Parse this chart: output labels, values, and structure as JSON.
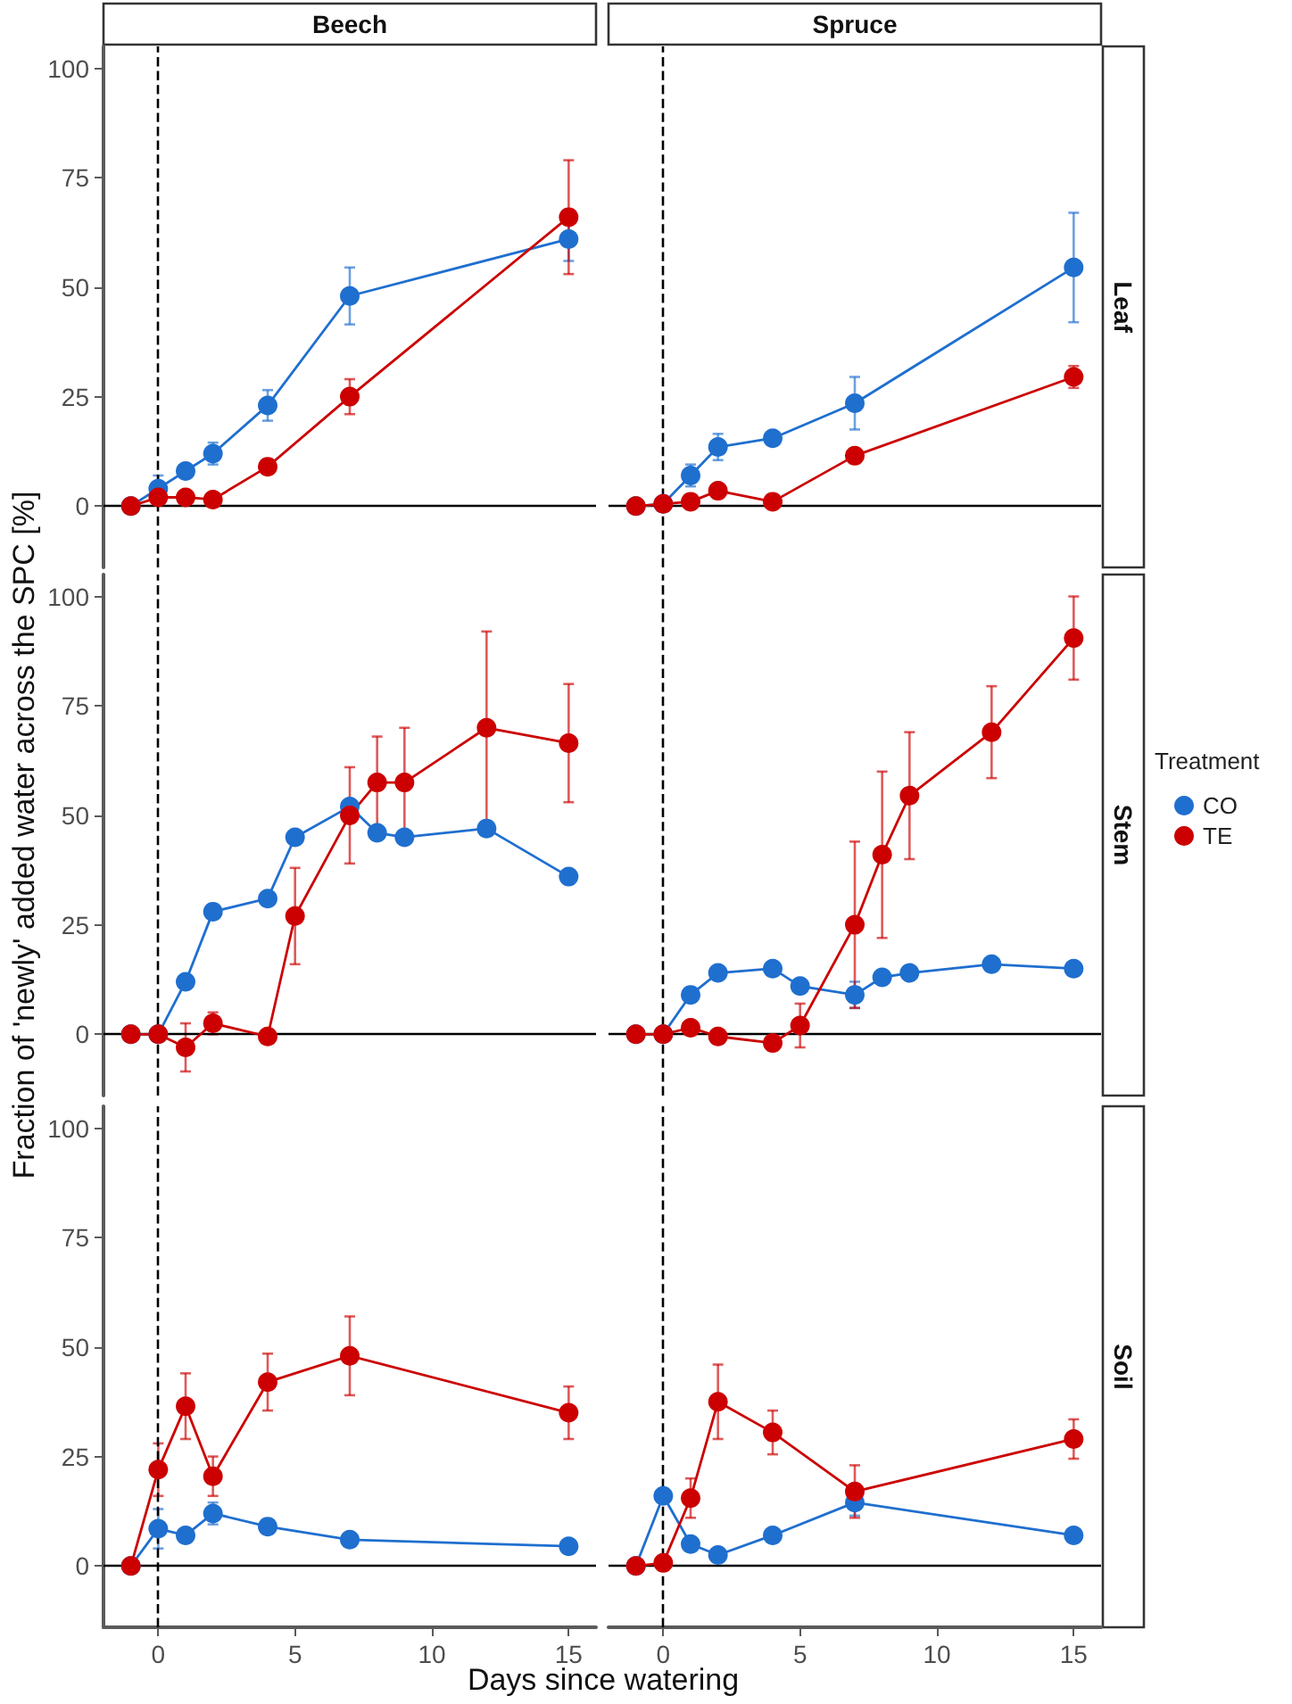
{
  "chart_data": [
    {
      "type": "line",
      "title": "Beech",
      "xlim": [
        -2,
        16
      ],
      "ylim": [
        -14,
        105
      ],
      "xticks": [
        0,
        5,
        10,
        15
      ],
      "yticks": [
        0,
        25,
        50,
        75,
        100
      ],
      "grid": false,
      "legend": false,
      "marker": "circle",
      "tick_labels": "y",
      "ref_lines": [
        {
          "axis": "x",
          "value": 0,
          "line_style": "dashed",
          "color": "#000000"
        },
        {
          "axis": "y",
          "value": 0,
          "color": "#000000"
        }
      ],
      "series": [
        {
          "color": "#1f6fcf",
          "x": [
            -1,
            0,
            1,
            2,
            4,
            7,
            15
          ],
          "values": [
            0,
            4,
            8,
            12,
            23,
            48,
            61
          ],
          "errors": [
            null,
            3,
            null,
            2.5,
            3.5,
            6.5,
            5
          ]
        },
        {
          "color": "#cc0000",
          "x": [
            -1,
            0,
            1,
            2,
            4,
            7,
            15
          ],
          "values": [
            0,
            2,
            2,
            1.5,
            9,
            25,
            66
          ],
          "errors": [
            null,
            null,
            null,
            null,
            null,
            4,
            13
          ]
        }
      ]
    },
    {
      "type": "line",
      "title": "Spruce",
      "annotations": [
        "Leaf"
      ],
      "xlim": [
        -2,
        16
      ],
      "ylim": [
        -14,
        105
      ],
      "xticks": [
        0,
        5,
        10,
        15
      ],
      "yticks": [
        0,
        25,
        50,
        75,
        100
      ],
      "grid": false,
      "legend": false,
      "marker": "circle",
      "tick_labels": false,
      "ref_lines": [
        {
          "axis": "x",
          "value": 0,
          "line_style": "dashed",
          "color": "#000000"
        },
        {
          "axis": "y",
          "value": 0,
          "color": "#000000"
        }
      ],
      "series": [
        {
          "color": "#1f6fcf",
          "x": [
            -1,
            0,
            1,
            2,
            4,
            7,
            15
          ],
          "values": [
            0,
            0.5,
            7,
            13.5,
            15.5,
            23.5,
            54.5
          ],
          "errors": [
            null,
            null,
            2.5,
            3,
            null,
            6,
            12.5
          ]
        },
        {
          "color": "#cc0000",
          "x": [
            -1,
            0,
            1,
            2,
            4,
            7,
            15
          ],
          "values": [
            0,
            0.5,
            1,
            3.5,
            1,
            11.5,
            29.5
          ],
          "errors": [
            null,
            null,
            null,
            null,
            null,
            1.5,
            2.5
          ]
        }
      ]
    },
    {
      "type": "line",
      "ylabel": "Fraction of 'newly' added water across the SPC [%]",
      "xlim": [
        -2,
        16
      ],
      "ylim": [
        -14,
        105
      ],
      "xticks": [
        0,
        5,
        10,
        15
      ],
      "yticks": [
        0,
        25,
        50,
        75,
        100
      ],
      "grid": false,
      "legend": false,
      "marker": "circle",
      "tick_labels": "y",
      "ref_lines": [
        {
          "axis": "x",
          "value": 0,
          "line_style": "dashed",
          "color": "#000000"
        },
        {
          "axis": "y",
          "value": 0,
          "color": "#000000"
        }
      ],
      "series": [
        {
          "color": "#1f6fcf",
          "x": [
            -1,
            0,
            1,
            2,
            4,
            5,
            7,
            8,
            9,
            12,
            15
          ],
          "values": [
            0,
            0,
            12,
            28,
            31,
            45,
            52,
            46,
            45,
            47,
            36
          ],
          "errors": [
            null,
            null,
            null,
            null,
            null,
            null,
            null,
            null,
            null,
            null,
            null
          ]
        },
        {
          "color": "#cc0000",
          "x": [
            -1,
            0,
            1,
            2,
            4,
            5,
            7,
            8,
            9,
            12,
            15
          ],
          "values": [
            0,
            0,
            -3,
            2.5,
            -0.5,
            27,
            50,
            57.5,
            57.5,
            70,
            66.5
          ],
          "errors": [
            null,
            null,
            5.5,
            2.5,
            null,
            11,
            11,
            10.5,
            12.5,
            22,
            13.5
          ]
        }
      ]
    },
    {
      "type": "line",
      "annotations": [
        "Stem"
      ],
      "legend_title": "Treatment",
      "xlim": [
        -2,
        16
      ],
      "ylim": [
        -14,
        105
      ],
      "xticks": [
        0,
        5,
        10,
        15
      ],
      "yticks": [
        0,
        25,
        50,
        75,
        100
      ],
      "grid": false,
      "legend": "right",
      "marker": "circle",
      "tick_labels": false,
      "ref_lines": [
        {
          "axis": "x",
          "value": 0,
          "line_style": "dashed",
          "color": "#000000"
        },
        {
          "axis": "y",
          "value": 0,
          "color": "#000000"
        }
      ],
      "series": [
        {
          "name": "CO",
          "color": "#1f6fcf",
          "x": [
            -1,
            0,
            1,
            2,
            4,
            5,
            7,
            8,
            9,
            12,
            15
          ],
          "values": [
            0,
            0,
            9,
            14,
            15,
            11,
            9,
            13,
            14,
            16,
            15
          ],
          "errors": [
            null,
            null,
            null,
            null,
            null,
            null,
            3,
            null,
            null,
            null,
            null
          ]
        },
        {
          "name": "TE",
          "color": "#cc0000",
          "x": [
            -1,
            0,
            1,
            2,
            4,
            5,
            7,
            8,
            9,
            12,
            15
          ],
          "values": [
            0,
            0,
            1.5,
            -0.5,
            -2,
            2,
            25,
            41,
            54.5,
            69,
            90.5
          ],
          "errors": [
            null,
            null,
            null,
            null,
            null,
            5,
            19,
            19,
            14.5,
            10.5,
            9.5
          ]
        }
      ]
    },
    {
      "type": "line",
      "xlabel": "Days since watering",
      "xlim": [
        -2,
        16
      ],
      "ylim": [
        -14,
        105
      ],
      "xticks": [
        0,
        5,
        10,
        15
      ],
      "yticks": [
        0,
        25,
        50,
        75,
        100
      ],
      "grid": false,
      "legend": false,
      "marker": "circle",
      "ref_lines": [
        {
          "axis": "x",
          "value": 0,
          "line_style": "dashed",
          "color": "#000000"
        },
        {
          "axis": "y",
          "value": 0,
          "color": "#000000"
        }
      ],
      "series": [
        {
          "color": "#1f6fcf",
          "x": [
            -1,
            0,
            1,
            2,
            4,
            7,
            15
          ],
          "values": [
            0,
            8.5,
            7,
            12,
            9,
            6,
            4.5
          ],
          "errors": [
            null,
            4.5,
            null,
            2.5,
            1.5,
            null,
            null
          ]
        },
        {
          "color": "#cc0000",
          "x": [
            -1,
            0,
            1,
            2,
            4,
            7,
            15
          ],
          "values": [
            0,
            22,
            36.5,
            20.5,
            42,
            48,
            35
          ],
          "errors": [
            null,
            6,
            7.5,
            4.5,
            6.5,
            9,
            6
          ]
        }
      ]
    },
    {
      "type": "line",
      "annotations": [
        "Soil"
      ],
      "xlim": [
        -2,
        16
      ],
      "ylim": [
        -14,
        105
      ],
      "xticks": [
        0,
        5,
        10,
        15
      ],
      "yticks": [
        0,
        25,
        50,
        75,
        100
      ],
      "grid": false,
      "legend": false,
      "marker": "circle",
      "tick_labels": "x",
      "ref_lines": [
        {
          "axis": "x",
          "value": 0,
          "line_style": "dashed",
          "color": "#000000"
        },
        {
          "axis": "y",
          "value": 0,
          "color": "#000000"
        }
      ],
      "series": [
        {
          "color": "#1f6fcf",
          "x": [
            -1,
            0,
            1,
            2,
            4,
            7,
            15
          ],
          "values": [
            0,
            16,
            5,
            2.5,
            7,
            14.5,
            7
          ],
          "errors": [
            null,
            null,
            null,
            null,
            null,
            3,
            null
          ]
        },
        {
          "color": "#cc0000",
          "x": [
            -1,
            0,
            1,
            2,
            4,
            7,
            15
          ],
          "values": [
            0,
            0.7,
            15.5,
            37.5,
            30.5,
            17,
            29
          ],
          "errors": [
            null,
            null,
            4.5,
            8.5,
            5,
            6,
            4.5
          ]
        }
      ]
    }
  ]
}
